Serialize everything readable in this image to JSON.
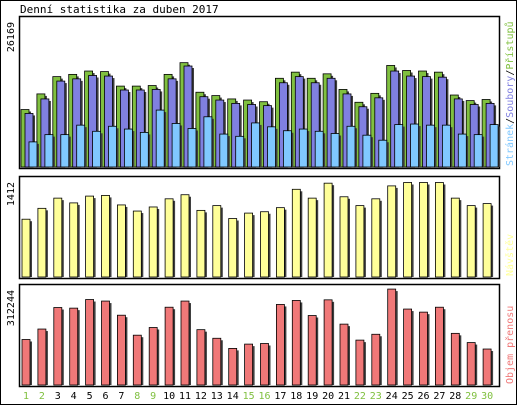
{
  "title": "Denní statistika za duben 2017",
  "colors": {
    "pristupy": "#80c040",
    "soubory": "#8080e0",
    "stranky": "#80c8ff",
    "navstevy": "#ffff99",
    "objem": "#f07878",
    "day_normal": "#000000",
    "day_weekend": "#80c040"
  },
  "chart_data": [
    {
      "type": "bar",
      "panel": "hits",
      "ymax_label": "26169",
      "categories": [
        "1",
        "2",
        "3",
        "4",
        "5",
        "6",
        "7",
        "8",
        "9",
        "10",
        "11",
        "12",
        "13",
        "14",
        "15",
        "16",
        "17",
        "18",
        "19",
        "20",
        "21",
        "22",
        "23",
        "24",
        "25",
        "26",
        "27",
        "28",
        "29",
        "30"
      ],
      "series": [
        {
          "name": "Přístupů",
          "color": "#80c040",
          "values": [
            10300,
            13100,
            16200,
            16600,
            17200,
            17100,
            14500,
            14500,
            14600,
            16600,
            18700,
            13400,
            12800,
            12200,
            12000,
            11700,
            15900,
            17000,
            15900,
            16700,
            13900,
            11600,
            13200,
            18200,
            17300,
            17200,
            17000,
            12900,
            11900,
            12100
          ]
        },
        {
          "name": "Soubory",
          "color": "#8080e0",
          "values": [
            9600,
            12200,
            15400,
            15800,
            16400,
            16300,
            13800,
            13800,
            13900,
            15800,
            18100,
            12600,
            12000,
            11400,
            11200,
            11000,
            15100,
            16200,
            15100,
            15900,
            13100,
            10800,
            12400,
            17200,
            16300,
            16200,
            16100,
            12200,
            11200,
            11400
          ]
        },
        {
          "name": "Stránek",
          "color": "#80c8ff",
          "values": [
            4500,
            5800,
            5800,
            7500,
            6400,
            7300,
            6800,
            6200,
            10200,
            7800,
            6900,
            9000,
            5900,
            5500,
            7900,
            7200,
            6500,
            6800,
            6400,
            6000,
            7300,
            5700,
            4800,
            7600,
            7700,
            7500,
            7500,
            5900,
            5800,
            7600
          ]
        }
      ],
      "legend": [
        "Stránek",
        "/",
        "Soubory",
        "/",
        "Přístupů"
      ]
    },
    {
      "type": "bar",
      "panel": "visits",
      "ymax_label": "1412",
      "series": [
        {
          "name": "Návštěv",
          "color": "#ffff99",
          "values": [
            850,
            1010,
            1160,
            1090,
            1190,
            1200,
            1060,
            970,
            1030,
            1150,
            1210,
            980,
            1050,
            860,
            940,
            960,
            1020,
            1290,
            1160,
            1380,
            1180,
            1050,
            1150,
            1340,
            1390,
            1390,
            1390,
            1160,
            1050,
            1080
          ]
        }
      ]
    },
    {
      "type": "bar",
      "panel": "bytes",
      "ymax_label": "312244",
      "series": [
        {
          "name": "Objem přenosu",
          "color": "#f07878",
          "values": [
            148000,
            182000,
            252000,
            250000,
            278000,
            273000,
            227000,
            162000,
            187000,
            253000,
            273000,
            180000,
            152000,
            119000,
            133000,
            135000,
            262000,
            275000,
            226000,
            277000,
            198000,
            146000,
            165000,
            312000,
            247000,
            237000,
            253000,
            168000,
            138000,
            117000
          ]
        }
      ]
    }
  ],
  "weekend_days": [
    "1",
    "2",
    "8",
    "9",
    "15",
    "16",
    "22",
    "23",
    "29",
    "30"
  ]
}
